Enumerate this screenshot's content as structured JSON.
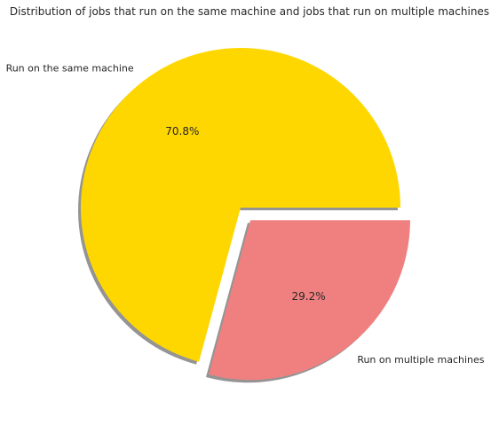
{
  "chart_data": {
    "type": "pie",
    "title": "Distribution of jobs that run on the same machine and jobs that run on multiple machines",
    "categories": [
      "Run on the same machine",
      "Run on multiple machines"
    ],
    "values": [
      70.8,
      29.2
    ],
    "labels_pct": [
      "70.8%",
      "29.2%"
    ],
    "colors": [
      "#ffd700",
      "#f08080"
    ],
    "explode": [
      0,
      0.1
    ],
    "shadow": true,
    "start_angle_deg": 0
  }
}
